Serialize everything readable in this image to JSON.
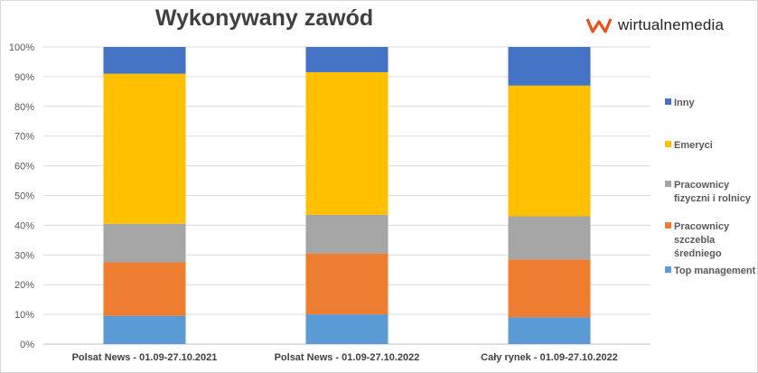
{
  "chart_data": {
    "type": "bar",
    "stacked": true,
    "title": "Wykonywany zawód",
    "categories": [
      "Polsat News - 01.09-27.10.2021",
      "Polsat News - 01.09-27.10.2022",
      "Cały rynek - 01.09-27.10.2022"
    ],
    "ylim": [
      0,
      100
    ],
    "yticks": [
      "0%",
      "10%",
      "20%",
      "30%",
      "40%",
      "50%",
      "60%",
      "70%",
      "80%",
      "90%",
      "100%"
    ],
    "grid": true,
    "legend_position": "right",
    "series": [
      {
        "name": "Top management",
        "color": "#5b9bd5",
        "values": [
          9.5,
          10,
          9
        ]
      },
      {
        "name": "Pracownicy szczebla średniego",
        "color": "#ed7d31",
        "values": [
          18,
          20.5,
          19.5
        ]
      },
      {
        "name": "Pracownicy fizyczni i rolnicy",
        "color": "#a5a5a5",
        "values": [
          13,
          13,
          14.5
        ]
      },
      {
        "name": "Emeryci",
        "color": "#ffc000",
        "values": [
          50.5,
          48,
          44
        ]
      },
      {
        "name": "Inny",
        "color": "#4472c4",
        "values": [
          9,
          8.5,
          13
        ]
      }
    ]
  },
  "legend": [
    {
      "lines": [
        "Inny"
      ],
      "color": "#4472c4"
    },
    {
      "lines": [
        "Emeryci"
      ],
      "color": "#ffc000"
    },
    {
      "lines": [
        "Pracownicy",
        "fizyczni i rolnicy"
      ],
      "color": "#a5a5a5"
    },
    {
      "lines": [
        "Pracownicy",
        "szczebla",
        "średniego"
      ],
      "color": "#ed7d31"
    },
    {
      "lines": [
        "Top management"
      ],
      "color": "#5b9bd5"
    }
  ],
  "logo": {
    "text": "wirtualnemedia",
    "icon": "wm-logo-icon",
    "accent": "#e8531d"
  }
}
